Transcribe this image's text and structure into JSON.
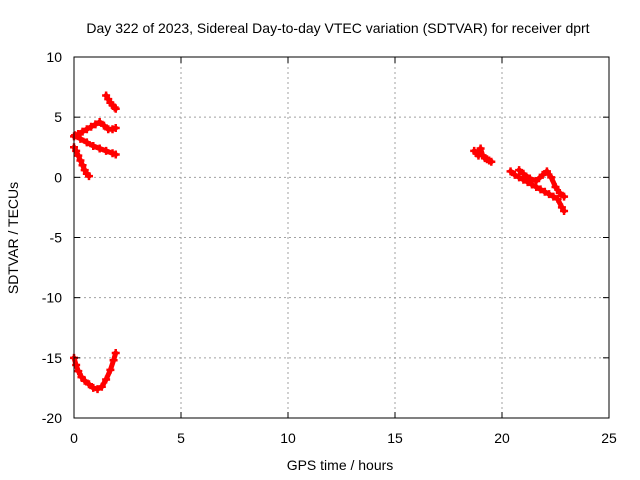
{
  "chart_data": {
    "type": "scatter",
    "title": "Day 322 of 2023, Sidereal Day-to-day VTEC variation (SDTVAR) for receiver dprt",
    "xlabel": "GPS time / hours",
    "ylabel": "SDTVAR / TECUs",
    "xlim": [
      0,
      25
    ],
    "ylim": [
      -20,
      10
    ],
    "x_ticks": [
      0,
      5,
      10,
      15,
      20,
      25
    ],
    "y_ticks": [
      -20,
      -15,
      -10,
      -5,
      0,
      5,
      10
    ],
    "x_tick_labels": [
      "0",
      "5",
      "10",
      "15",
      "20",
      "25"
    ],
    "y_tick_labels": [
      "-20",
      "-15",
      "-10",
      "-5",
      "0",
      "5",
      "10"
    ],
    "grid": true,
    "series": [
      {
        "name": "dprt",
        "color": "#ff0000",
        "segments": [
          [
            [
              0.0,
              3.4
            ],
            [
              0.2,
              3.6
            ],
            [
              0.4,
              3.8
            ],
            [
              0.6,
              4.0
            ],
            [
              0.8,
              4.2
            ],
            [
              1.0,
              4.4
            ],
            [
              1.2,
              4.6
            ],
            [
              1.4,
              4.3
            ],
            [
              1.6,
              4.0
            ],
            [
              1.8,
              4.0
            ],
            [
              1.95,
              4.1
            ]
          ],
          [
            [
              1.5,
              6.8
            ],
            [
              1.6,
              6.5
            ],
            [
              1.7,
              6.2
            ],
            [
              1.8,
              6.0
            ],
            [
              1.9,
              5.8
            ],
            [
              1.95,
              5.7
            ]
          ],
          [
            [
              0.05,
              3.5
            ],
            [
              0.3,
              3.2
            ],
            [
              0.6,
              2.9
            ],
            [
              0.9,
              2.6
            ],
            [
              1.2,
              2.4
            ],
            [
              1.5,
              2.2
            ],
            [
              1.8,
              2.0
            ],
            [
              1.95,
              1.9
            ]
          ],
          [
            [
              0.0,
              2.5
            ],
            [
              0.1,
              2.2
            ],
            [
              0.2,
              1.8
            ],
            [
              0.3,
              1.4
            ],
            [
              0.4,
              1.0
            ],
            [
              0.5,
              0.6
            ],
            [
              0.6,
              0.3
            ],
            [
              0.7,
              0.1
            ]
          ],
          [
            [
              0.0,
              -15.0
            ],
            [
              0.1,
              -15.6
            ],
            [
              0.2,
              -16.1
            ],
            [
              0.35,
              -16.6
            ],
            [
              0.5,
              -16.9
            ],
            [
              0.7,
              -17.2
            ],
            [
              0.9,
              -17.5
            ],
            [
              1.1,
              -17.6
            ],
            [
              1.3,
              -17.4
            ],
            [
              1.5,
              -16.8
            ],
            [
              1.7,
              -16.0
            ],
            [
              1.85,
              -15.2
            ],
            [
              1.95,
              -14.6
            ]
          ],
          [
            [
              18.7,
              2.2
            ],
            [
              18.8,
              2.0
            ],
            [
              18.9,
              1.8
            ],
            [
              19.0,
              2.4
            ],
            [
              19.1,
              1.8
            ],
            [
              19.2,
              1.6
            ],
            [
              19.3,
              1.5
            ],
            [
              19.4,
              1.4
            ],
            [
              19.5,
              1.3
            ]
          ],
          [
            [
              20.4,
              0.5
            ],
            [
              20.6,
              0.2
            ],
            [
              20.8,
              0.0
            ],
            [
              21.0,
              -0.2
            ],
            [
              21.2,
              -0.4
            ],
            [
              21.4,
              -0.6
            ],
            [
              21.6,
              -0.8
            ],
            [
              21.8,
              -1.0
            ],
            [
              22.0,
              -1.2
            ],
            [
              22.2,
              -1.4
            ],
            [
              22.4,
              -1.6
            ],
            [
              22.6,
              -1.8
            ],
            [
              22.8,
              -2.5
            ],
            [
              22.9,
              -2.8
            ]
          ],
          [
            [
              20.8,
              0.6
            ],
            [
              21.0,
              0.3
            ],
            [
              21.3,
              -0.1
            ],
            [
              21.6,
              -0.3
            ],
            [
              21.9,
              0.2
            ],
            [
              22.1,
              0.5
            ],
            [
              22.3,
              0.0
            ],
            [
              22.5,
              -0.8
            ],
            [
              22.7,
              -1.3
            ],
            [
              22.9,
              -1.6
            ]
          ]
        ]
      }
    ]
  }
}
